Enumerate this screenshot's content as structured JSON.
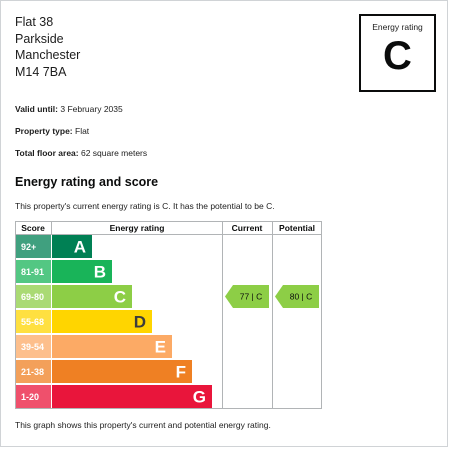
{
  "address": {
    "line1": "Flat 38",
    "line2": "Parkside",
    "line3": "Manchester",
    "line4": "M14 7BA"
  },
  "rating_box": {
    "label": "Energy rating",
    "value": "C"
  },
  "details": {
    "valid_until_label": "Valid until:",
    "valid_until_value": "3 February 2035",
    "property_type_label": "Property type:",
    "property_type_value": "Flat",
    "floor_area_label": "Total floor area:",
    "floor_area_value": "62 square meters"
  },
  "section_title": "Energy rating and score",
  "intro_text": "This property's current energy rating is C. It has the potential to be C.",
  "footer_text": "This graph shows this property's current and potential energy rating.",
  "chart_data": {
    "type": "bar",
    "columns": {
      "score": "Score",
      "rating": "Energy rating",
      "current": "Current",
      "potential": "Potential"
    },
    "bands": [
      {
        "score": "92+",
        "letter": "A",
        "color": "#008054"
      },
      {
        "score": "81-91",
        "letter": "B",
        "color": "#19b459"
      },
      {
        "score": "69-80",
        "letter": "C",
        "color": "#8dce46"
      },
      {
        "score": "55-68",
        "letter": "D",
        "color": "#ffd500"
      },
      {
        "score": "39-54",
        "letter": "E",
        "color": "#fcaa65"
      },
      {
        "score": "21-38",
        "letter": "F",
        "color": "#ef8023"
      },
      {
        "score": "1-20",
        "letter": "G",
        "color": "#e9153b"
      }
    ],
    "current": {
      "value": 77,
      "band": "C",
      "label": "77 | C"
    },
    "potential": {
      "value": 80,
      "band": "C",
      "label": "80 | C"
    }
  }
}
